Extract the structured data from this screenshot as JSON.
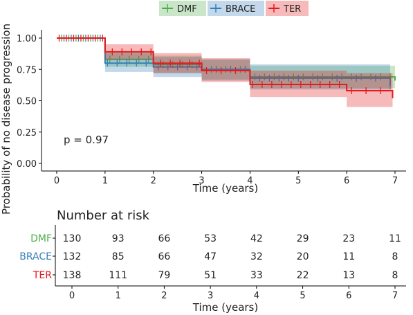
{
  "chart_data": {
    "type": "line",
    "subtype": "kaplan-meier",
    "ylabel": "Probability of no disease progression",
    "xlabel": "Time (years)",
    "xlim": [
      0,
      7
    ],
    "ylim": [
      0,
      1
    ],
    "x_ticks": [
      0,
      1,
      2,
      3,
      4,
      5,
      6,
      7
    ],
    "y_ticks": [
      "0.00",
      "0.25",
      "0.50",
      "0.75",
      "1.00"
    ],
    "legend_position": "top",
    "annotation": "p = 0.97",
    "series": [
      {
        "name": "DMF",
        "color": "#4daf4a",
        "steps": [
          [
            0,
            1.0
          ],
          [
            1,
            0.83
          ],
          [
            2,
            0.79
          ],
          [
            3,
            0.75
          ],
          [
            4,
            0.69
          ],
          [
            7,
            0.66
          ]
        ],
        "ci": [
          [
            0,
            1.0,
            1.0
          ],
          [
            1,
            0.77,
            0.89
          ],
          [
            2,
            0.72,
            0.86
          ],
          [
            3,
            0.67,
            0.83
          ],
          [
            4,
            0.6,
            0.78
          ],
          [
            7,
            0.56,
            0.76
          ]
        ],
        "censor_times": [
          0.1,
          0.25,
          0.4,
          0.55,
          0.7,
          0.85,
          1.1,
          1.3,
          1.5,
          1.7,
          1.9,
          2.2,
          2.4,
          2.6,
          2.8,
          3.2,
          3.5,
          3.8,
          4.1,
          4.3,
          4.5,
          4.7,
          4.9,
          5.1,
          5.3,
          5.5,
          5.7,
          5.9,
          6.1,
          6.3,
          6.5,
          6.7,
          6.9
        ]
      },
      {
        "name": "BRACE",
        "color": "#377eb8",
        "steps": [
          [
            0,
            1.0
          ],
          [
            1,
            0.8
          ],
          [
            2,
            0.77
          ],
          [
            3,
            0.75
          ],
          [
            4,
            0.68
          ],
          [
            6.9,
            0.62
          ]
        ],
        "ci": [
          [
            0,
            1.0,
            1.0
          ],
          [
            1,
            0.73,
            0.88
          ],
          [
            2,
            0.69,
            0.85
          ],
          [
            3,
            0.66,
            0.83
          ],
          [
            4,
            0.59,
            0.79
          ],
          [
            6.9,
            0.48,
            0.76
          ]
        ],
        "censor_times": [
          0.15,
          0.3,
          0.45,
          0.6,
          0.75,
          0.9,
          1.05,
          1.25,
          1.45,
          1.65,
          1.85,
          2.1,
          2.3,
          2.5,
          2.7,
          2.9,
          3.3,
          3.6,
          3.9,
          4.2,
          4.4,
          4.6,
          4.8,
          5.0,
          5.4,
          5.8,
          6.2,
          6.6,
          6.9
        ]
      },
      {
        "name": "TER",
        "color": "#e41a1c",
        "steps": [
          [
            0,
            1.0
          ],
          [
            1,
            0.89
          ],
          [
            2,
            0.8
          ],
          [
            3,
            0.74
          ],
          [
            4,
            0.63
          ],
          [
            6,
            0.58
          ],
          [
            6.95,
            0.52
          ]
        ],
        "ci": [
          [
            0,
            1.0,
            1.0
          ],
          [
            1,
            0.83,
            0.95
          ],
          [
            2,
            0.72,
            0.88
          ],
          [
            3,
            0.65,
            0.84
          ],
          [
            4,
            0.53,
            0.74
          ],
          [
            6,
            0.45,
            0.72
          ],
          [
            6.95,
            0.38,
            0.68
          ]
        ],
        "censor_times": [
          0.05,
          0.2,
          0.35,
          0.5,
          0.65,
          0.8,
          0.95,
          1.15,
          1.35,
          1.55,
          1.75,
          1.95,
          2.15,
          2.35,
          2.55,
          2.75,
          2.95,
          3.1,
          3.4,
          3.7,
          4.05,
          4.25,
          4.45,
          4.65,
          4.85,
          5.05,
          5.25,
          5.45,
          5.65,
          5.85,
          6.1,
          6.4,
          6.7
        ]
      }
    ],
    "risk_table": {
      "title": "Number at risk",
      "xlabel": "Time (years)",
      "times": [
        0,
        1,
        2,
        3,
        4,
        5,
        6,
        7
      ],
      "rows": [
        {
          "name": "DMF",
          "color": "#4daf4a",
          "values": [
            130,
            93,
            66,
            53,
            42,
            29,
            23,
            11
          ]
        },
        {
          "name": "BRACE",
          "color": "#377eb8",
          "values": [
            132,
            85,
            66,
            47,
            32,
            20,
            11,
            8
          ]
        },
        {
          "name": "TER",
          "color": "#e41a1c",
          "values": [
            138,
            111,
            79,
            51,
            33,
            22,
            13,
            8
          ]
        }
      ]
    }
  }
}
